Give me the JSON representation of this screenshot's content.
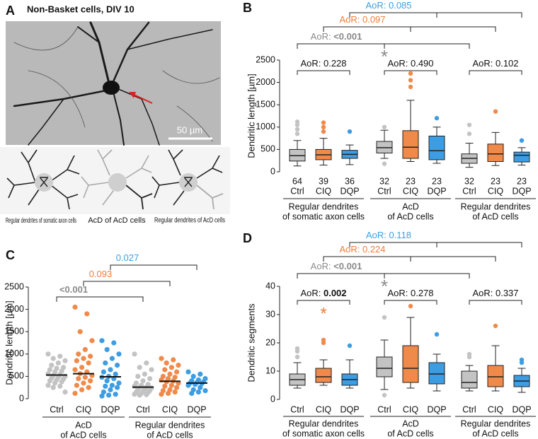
{
  "panel_a": {
    "letter": "A",
    "title": "Non-Basket cells, DIV 10",
    "scale_bar": "50 µm",
    "schematics": [
      "Regular dendrites of somatic axon cells",
      "AcD of AcD cells",
      "Regular dendrites of AcD cells"
    ]
  },
  "chart_data": [
    {
      "type": "box",
      "panel": "B",
      "ylabel": "Dendritic length [µm]",
      "ylim": [
        0,
        2500
      ],
      "yticks": [
        0,
        500,
        1000,
        1500,
        2000,
        2500
      ],
      "colors": [
        "#c3c3c3",
        "#f08a4b",
        "#3d9de3"
      ],
      "label_colors": [
        "#8a8a8a",
        "#ee7d3b",
        "#3aa0e0"
      ],
      "groups": [
        {
          "label": [
            "Regular dendrites",
            "of somatic axon cells"
          ],
          "categories": [
            "Ctrl",
            "CIQ",
            "DQP"
          ],
          "n": [
            64,
            39,
            36
          ],
          "boxes": [
            {
              "whislo": 130,
              "q1": 240,
              "med": 360,
              "q3": 500,
              "whishi": 700,
              "fliers": [
                850,
                950,
                1050,
                1120
              ]
            },
            {
              "whislo": 150,
              "q1": 270,
              "med": 380,
              "q3": 500,
              "whishi": 750,
              "fliers": [
                900,
                1000,
                1100
              ]
            },
            {
              "whislo": 160,
              "q1": 300,
              "med": 390,
              "q3": 480,
              "whishi": 600,
              "fliers": [
                900
              ]
            }
          ],
          "comparison": {
            "label": "AoR:",
            "value": "0.228",
            "bold": false
          }
        },
        {
          "label": [
            "AcD",
            "of AcD cells"
          ],
          "categories": [
            "Ctrl",
            "CIQ",
            "DQP"
          ],
          "n": [
            32,
            23,
            23
          ],
          "boxes": [
            {
              "whislo": 300,
              "q1": 420,
              "med": 540,
              "q3": 680,
              "whishi": 930,
              "fliers": [
                1000,
                180
              ]
            },
            {
              "whislo": 230,
              "q1": 300,
              "med": 550,
              "q3": 920,
              "whishi": 1600,
              "fliers": [
                1900,
                2050,
                2200
              ]
            },
            {
              "whislo": 190,
              "q1": 270,
              "med": 470,
              "q3": 800,
              "whishi": 1000,
              "fliers": [
                1200
              ]
            }
          ],
          "comparison": {
            "label": "AoR:",
            "value": "0.490",
            "bold": false
          }
        },
        {
          "label": [
            "Regular dendrites",
            "of AcD cells"
          ],
          "categories": [
            "Ctrl",
            "CIQ",
            "DQP"
          ],
          "n": [
            32,
            23,
            23
          ],
          "boxes": [
            {
              "whislo": 100,
              "q1": 190,
              "med": 300,
              "q3": 400,
              "whishi": 640,
              "fliers": [
                850,
                1050
              ]
            },
            {
              "whislo": 140,
              "q1": 230,
              "med": 400,
              "q3": 620,
              "whishi": 880,
              "fliers": [
                1350
              ]
            },
            {
              "whislo": 150,
              "q1": 220,
              "med": 370,
              "q3": 440,
              "whishi": 540,
              "fliers": [
                700
              ]
            }
          ],
          "comparison": {
            "label": "AoR:",
            "value": "0.102",
            "bold": false
          }
        }
      ],
      "top_comparisons": [
        {
          "label": "AoR:",
          "value": "<0.001",
          "bold": true,
          "star": "*"
        },
        {
          "label": "AoR:",
          "value": "0.097",
          "bold": false
        },
        {
          "label": "AoR:",
          "value": "0.085",
          "bold": false
        }
      ]
    },
    {
      "type": "strip",
      "panel": "C",
      "ylabel": "Dendritic length [µm]",
      "ylim": [
        0,
        2500
      ],
      "yticks": [
        0,
        500,
        1000,
        1500,
        2000,
        2500
      ],
      "colors": [
        "#c3c3c3",
        "#f08a4b",
        "#3d9de3"
      ],
      "label_colors": [
        "#8a8a8a",
        "#ee7d3b",
        "#3aa0e0"
      ],
      "groups": [
        {
          "label": [
            "AcD",
            "of AcD cells"
          ],
          "categories": [
            "Ctrl",
            "CIQ",
            "DQP"
          ],
          "medians": [
            530,
            560,
            490
          ],
          "points": [
            [
              1000,
              950,
              900,
              850,
              800,
              750,
              700,
              680,
              650,
              620,
              600,
              560,
              540,
              520,
              500,
              480,
              460,
              440,
              420,
              400,
              380,
              350,
              300,
              280,
              250,
              150
            ],
            [
              2050,
              1900,
              1500,
              1300,
              1100,
              1000,
              950,
              900,
              850,
              800,
              700,
              650,
              600,
              560,
              520,
              480,
              450,
              400,
              350,
              300,
              250,
              200,
              120
            ],
            [
              1300,
              1250,
              1100,
              1000,
              900,
              800,
              750,
              650,
              600,
              550,
              500,
              480,
              450,
              400,
              350,
              300,
              280,
              250,
              200,
              150,
              100,
              80,
              60
            ]
          ]
        },
        {
          "label": [
            "Regular dendrites",
            "of AcD cells"
          ],
          "categories": [
            "Ctrl",
            "CIQ",
            "DQP"
          ],
          "medians": [
            260,
            390,
            350
          ],
          "points": [
            [
              1000,
              800,
              700,
              650,
              550,
              500,
              450,
              400,
              350,
              320,
              300,
              280,
              260,
              250,
              240,
              220,
              200,
              180,
              160,
              150,
              140,
              120,
              100,
              90,
              80
            ],
            [
              900,
              870,
              800,
              750,
              700,
              650,
              600,
              550,
              500,
              480,
              450,
              420,
              400,
              380,
              350,
              300,
              280,
              250,
              200,
              180,
              150,
              120,
              100
            ],
            [
              600,
              550,
              500,
              450,
              420,
              400,
              380,
              360,
              350,
              340,
              320,
              300,
              250,
              200,
              180,
              150,
              120
            ]
          ]
        }
      ],
      "top_comparisons": [
        {
          "value": "<0.001",
          "bold": true
        },
        {
          "value": "0.093",
          "bold": false
        },
        {
          "value": "0.027",
          "bold": false
        }
      ]
    },
    {
      "type": "box",
      "panel": "D",
      "ylabel": "Dendritic segments",
      "ylim": [
        0,
        40
      ],
      "yticks": [
        0,
        10,
        20,
        30,
        40
      ],
      "colors": [
        "#c3c3c3",
        "#f08a4b",
        "#3d9de3"
      ],
      "label_colors": [
        "#8a8a8a",
        "#ee7d3b",
        "#3aa0e0"
      ],
      "groups": [
        {
          "label": [
            "Regular dendrites",
            "of somatic axon cells"
          ],
          "categories": [
            "Ctrl",
            "CIQ",
            "DQP"
          ],
          "boxes": [
            {
              "whislo": 4,
              "q1": 5,
              "med": 7,
              "q3": 9,
              "whishi": 13,
              "fliers": [
                15,
                17,
                18
              ]
            },
            {
              "whislo": 5,
              "q1": 6,
              "med": 8,
              "q3": 11,
              "whishi": 14,
              "fliers": [
                20,
                21
              ]
            },
            {
              "whislo": 4,
              "q1": 5,
              "med": 7,
              "q3": 9,
              "whishi": 14,
              "fliers": [
                19
              ]
            }
          ],
          "comparison": {
            "label": "AoR:",
            "value": "0.002",
            "bold": true,
            "star": "*",
            "star_color": "#ee7d3b"
          }
        },
        {
          "label": [
            "AcD",
            "of AcD cells"
          ],
          "categories": [
            "Ctrl",
            "CIQ",
            "DQP"
          ],
          "boxes": [
            {
              "whislo": 3.5,
              "q1": 8,
              "med": 11,
              "q3": 15,
              "whishi": 21,
              "fliers": [
                29,
                1.5
              ]
            },
            {
              "whislo": 4,
              "q1": 6,
              "med": 11,
              "q3": 19,
              "whishi": 29,
              "fliers": [
                33
              ]
            },
            {
              "whislo": 3,
              "q1": 5.5,
              "med": 9,
              "q3": 13,
              "whishi": 16,
              "fliers": [
                23
              ]
            }
          ],
          "comparison": {
            "label": "AoR:",
            "value": "0.278",
            "bold": false
          }
        },
        {
          "label": [
            "Regular dendrites",
            "of AcD cells"
          ],
          "categories": [
            "Ctrl",
            "CIQ",
            "DQP"
          ],
          "boxes": [
            {
              "whislo": 3,
              "q1": 4,
              "med": 6,
              "q3": 10,
              "whishi": 12,
              "fliers": [
                15,
                16
              ]
            },
            {
              "whislo": 3,
              "q1": 4.5,
              "med": 8,
              "q3": 12,
              "whishi": 19,
              "fliers": [
                26
              ]
            },
            {
              "whislo": 2.5,
              "q1": 4.5,
              "med": 6.5,
              "q3": 8.5,
              "whishi": 11,
              "fliers": [
                14,
                13
              ]
            }
          ],
          "comparison": {
            "label": "AoR:",
            "value": "0.337",
            "bold": false
          }
        }
      ],
      "top_comparisons": [
        {
          "label": "AoR:",
          "value": "<0.001",
          "bold": true,
          "star": "*"
        },
        {
          "label": "AoR:",
          "value": "0.224",
          "bold": false
        },
        {
          "label": "AoR:",
          "value": "0.118",
          "bold": false
        }
      ]
    }
  ]
}
